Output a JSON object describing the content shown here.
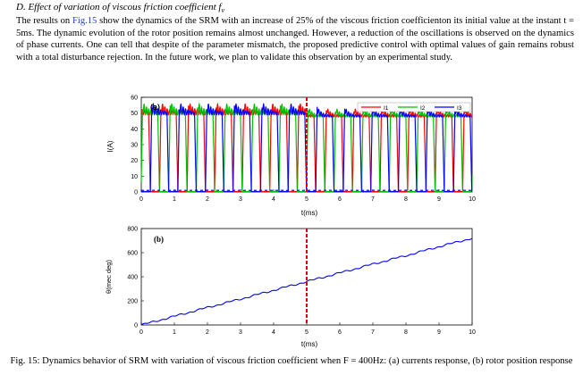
{
  "section": {
    "heading_prefix": "D.  Effect of variation of viscous friction coefficient ",
    "heading_symbol": "f",
    "heading_sub": "v"
  },
  "paragraph": {
    "part1": "The results on ",
    "ref": "Fig.15",
    "part2": " show the dynamics of the SRM with an increase of 25% of the viscous friction coefficienton its initial value at the instant t = 5ms. The dynamic evolution of the rotor position remains almost unchanged. However, a reduction of the oscillations is observed on the dynamics of phase currents. One can tell that despite of the parameter mismatch, the proposed predictive control with optimal values of gain remains robust with a total disturbance rejection. In the future work, we plan to validate this observation by an experimental study."
  },
  "caption": "Fig. 15: Dynamics behavior of SRM with variation of viscous friction coefficient when F = 400Hz: (a) currents response, (b) rotor position response",
  "chart_data": [
    {
      "type": "line",
      "panel_label": "(a)",
      "xlabel": "t(ms)",
      "ylabel": "I(A)",
      "xlim": [
        0,
        10
      ],
      "ylim": [
        0,
        60
      ],
      "xticks": [
        "0",
        "1",
        "2",
        "3",
        "4",
        "5",
        "6",
        "7",
        "8",
        "9",
        "10"
      ],
      "yticks": [
        "0",
        "10",
        "20",
        "30",
        "40",
        "50",
        "60"
      ],
      "period_ms": 0.833,
      "on_fraction": 0.6,
      "plateau_level_before": 50,
      "plateau_level_after": 48,
      "plateau_ripple_before": 3.5,
      "plateau_ripple_after": 2.0,
      "event_time_ms": 5,
      "legend_position": "top-right",
      "series": [
        {
          "name": "I1",
          "color": "#ff0000",
          "phase_offset_ms": 0.556
        },
        {
          "name": "I2",
          "color": "#00c000",
          "phase_offset_ms": 0.0
        },
        {
          "name": "I3",
          "color": "#0000ff",
          "phase_offset_ms": 0.278
        }
      ],
      "grid": false
    },
    {
      "type": "line",
      "panel_label": "(b)",
      "xlabel": "t(ms)",
      "ylabel": "θ(mec deg)",
      "xlim": [
        0,
        10
      ],
      "ylim": [
        0,
        800
      ],
      "xticks": [
        "0",
        "1",
        "2",
        "3",
        "4",
        "5",
        "6",
        "7",
        "8",
        "9",
        "10"
      ],
      "yticks": [
        "0",
        "200",
        "400",
        "600",
        "800"
      ],
      "event_time_ms": 5,
      "series": [
        {
          "color": "#0000ff",
          "x": [
            0,
            1,
            2,
            3,
            4,
            5,
            6,
            7,
            8,
            9,
            10
          ],
          "y": [
            0,
            72,
            145,
            215,
            288,
            360,
            432,
            505,
            575,
            650,
            720
          ]
        }
      ],
      "grid": false
    }
  ]
}
